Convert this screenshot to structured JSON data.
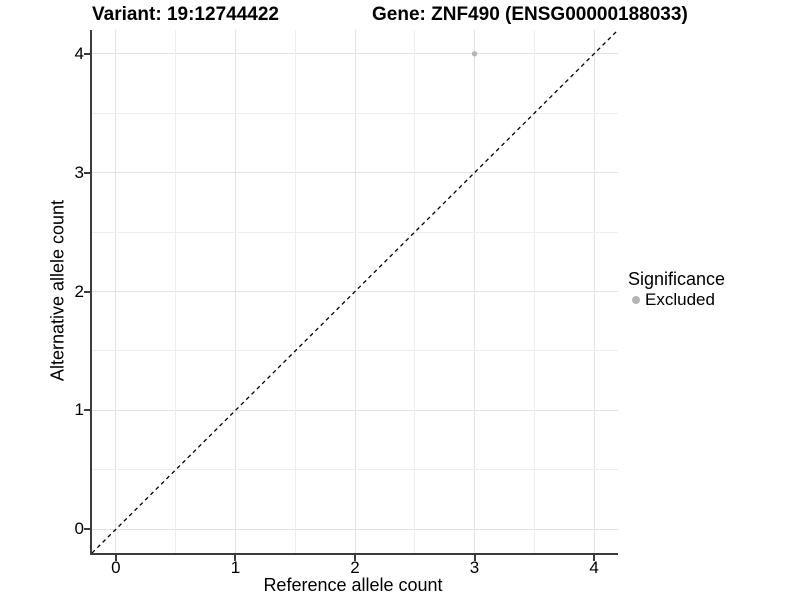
{
  "header": {
    "variant_title": "Variant: 19:12744422",
    "gene_title": "Gene: ZNF490 (ENSG00000188033)"
  },
  "chart_data": {
    "type": "scatter",
    "xlabel": "Reference allele count",
    "ylabel": "Alternative allele count",
    "xlim": [
      -0.2,
      4.2
    ],
    "ylim": [
      -0.2,
      4.2
    ],
    "xticks": [
      0,
      1,
      2,
      3,
      4
    ],
    "yticks": [
      0,
      1,
      2,
      3,
      4
    ],
    "xminor": [
      0.5,
      1.5,
      2.5,
      3.5
    ],
    "yminor": [
      0.5,
      1.5,
      2.5,
      3.5
    ],
    "grid": "major-and-minor",
    "identity_line": {
      "style": "dashed",
      "x1": -0.2,
      "y1": -0.2,
      "x2": 4.2,
      "y2": 4.2,
      "color": "#000000"
    },
    "series": [
      {
        "name": "Excluded",
        "color": "#b5b5b5",
        "points": [
          {
            "x": 3,
            "y": 4
          }
        ]
      }
    ],
    "legend": {
      "title": "Significance",
      "position": "right",
      "entries": [
        {
          "label": "Excluded",
          "color": "#b5b5b5"
        }
      ]
    }
  },
  "colors": {
    "background": "#ffffff",
    "grid_major": "#e2e2e2",
    "grid_minor": "#eeeeee",
    "axis_line": "#3b3b3b",
    "text": "#000000"
  }
}
